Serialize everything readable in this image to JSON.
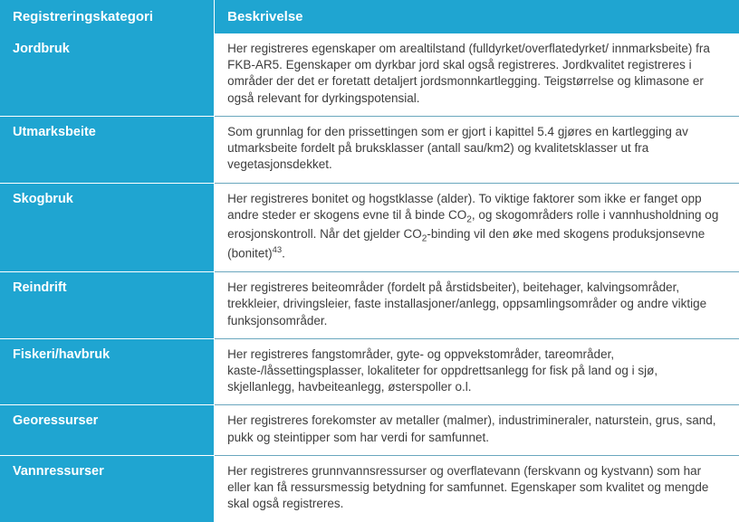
{
  "table": {
    "headers": {
      "category": "Registreringskategori",
      "description": "Beskrivelse"
    },
    "rows": [
      {
        "label": "Jordbruk",
        "desc": "Her registreres egenskaper om arealtilstand (fulldyrket/overflatedyrket/ innmarksbeite) fra FKB-AR5. Egenskaper om dyrkbar jord skal også registreres. Jordkvalitet registreres i områder der det er foretatt detaljert jordsmonnkartlegging. Teigstørrelse og klimasone er også relevant for dyrkingspotensial."
      },
      {
        "label": "Utmarksbeite",
        "desc": "Som grunnlag for den prissettingen som er gjort i kapittel 5.4 gjøres en kartlegging av utmarksbeite fordelt på bruksklasser (antall sau/km2) og kvalitetsklasser ut fra vegetasjonsdekket."
      },
      {
        "label": "Skogbruk",
        "desc_html": "Her registreres bonitet og hogstklasse (alder). To viktige faktorer som ikke er fanget opp andre steder er skogens evne til å binde CO<sub>2</sub>, og skogområders rolle i vannhusholdning og erosjonskontroll. Når det gjelder CO<sub>2</sub>-binding vil den øke med skogens produksjonsevne (bonitet)<sup>43</sup>."
      },
      {
        "label": "Reindrift",
        "desc": "Her registreres beiteområder (fordelt på årstidsbeiter), beitehager, kalvingsområder, trekkleier, drivingsleier, faste installasjoner/anlegg, oppsamlingsområder og andre viktige funksjonsområder."
      },
      {
        "label": "Fiskeri/havbruk",
        "desc": "Her registreres fangstområder, gyte- og oppvekstområder, tareområder, kaste-/låssettingsplasser, lokaliteter for oppdrettsanlegg for fisk på land og i sjø, skjellanlegg, havbeiteanlegg, østerspoller o.l."
      },
      {
        "label": "Georessurser",
        "desc": "Her registreres forekomster av metaller (malmer), industrimineraler, naturstein, grus, sand, pukk og steintipper som har verdi for samfunnet."
      },
      {
        "label": "Vannressurser",
        "desc": "Her registreres grunnvannsressurser og overflatevann (ferskvann og kystvann) som har eller kan få ressursmessig betydning for samfunnet. Egenskaper som kvalitet og mengde skal også registreres."
      }
    ],
    "colors": {
      "header_bg": "#1fa5d1",
      "header_fg": "#ffffff",
      "divider": "#6aa7be",
      "text": "#3d3d3d"
    },
    "column_widths": [
      "29%",
      "71%"
    ],
    "font_sizes": {
      "header": 15,
      "label": 14.5,
      "body": 13.5
    }
  }
}
